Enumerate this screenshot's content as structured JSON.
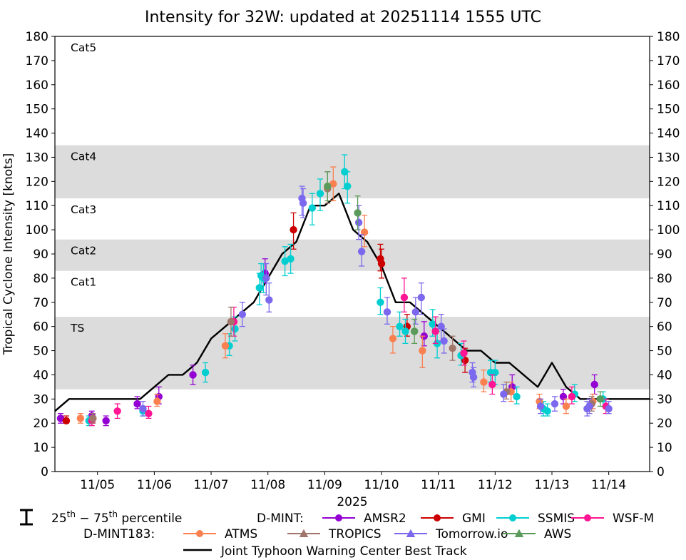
{
  "chart_data": {
    "type": "scatter",
    "title": "Intensity for 32W: updated at 20251114 1555 UTC",
    "xlabel": "2025",
    "ylabel": "Tropical Cyclone Intensity [knots]",
    "xlim": [
      4.25,
      14.72
    ],
    "ylim": [
      0,
      180
    ],
    "yticks": [
      0,
      10,
      20,
      30,
      40,
      50,
      60,
      70,
      80,
      90,
      100,
      110,
      120,
      130,
      140,
      150,
      160,
      170,
      180
    ],
    "xticks": [
      {
        "x": 5.0,
        "label": "11/05"
      },
      {
        "x": 6.0,
        "label": "11/06"
      },
      {
        "x": 7.0,
        "label": "11/07"
      },
      {
        "x": 8.0,
        "label": "11/08"
      },
      {
        "x": 9.0,
        "label": "11/09"
      },
      {
        "x": 10.0,
        "label": "11/10"
      },
      {
        "x": 11.0,
        "label": "11/11"
      },
      {
        "x": 12.0,
        "label": "11/12"
      },
      {
        "x": 13.0,
        "label": "11/13"
      },
      {
        "x": 14.0,
        "label": "11/14"
      }
    ],
    "bands": [
      {
        "label": "TS",
        "ymin": 34,
        "ymax": 64,
        "shaded": true,
        "color": "#dcdcdc"
      },
      {
        "label": "Cat1",
        "ymin": 64,
        "ymax": 83,
        "shaded": false
      },
      {
        "label": "Cat2",
        "ymin": 83,
        "ymax": 96,
        "shaded": true,
        "color": "#dcdcdc"
      },
      {
        "label": "Cat3",
        "ymin": 96,
        "ymax": 113,
        "shaded": false
      },
      {
        "label": "Cat4",
        "ymin": 113,
        "ymax": 135,
        "shaded": true,
        "color": "#dcdcdc"
      },
      {
        "label": "Cat5",
        "ymin": 135,
        "ymax": 180,
        "shaded": false
      }
    ],
    "best_track": {
      "name": "Joint Typhoon Warning Center Best Track",
      "color": "#000000",
      "x": [
        4.25,
        4.5,
        5.0,
        5.5,
        5.75,
        6.0,
        6.25,
        6.5,
        6.75,
        7.0,
        7.25,
        7.5,
        7.75,
        8.0,
        8.25,
        8.5,
        8.75,
        9.0,
        9.25,
        9.5,
        9.75,
        10.0,
        10.25,
        10.5,
        10.75,
        11.0,
        11.25,
        11.5,
        11.75,
        12.0,
        12.25,
        12.5,
        12.75,
        13.0,
        13.25,
        13.5,
        13.75,
        14.0,
        14.25,
        14.5,
        14.72
      ],
      "y": [
        25,
        30,
        30,
        30,
        30,
        35,
        40,
        40,
        45,
        55,
        60,
        65,
        70,
        80,
        90,
        95,
        110,
        110,
        115,
        100,
        95,
        85,
        70,
        70,
        65,
        60,
        55,
        50,
        50,
        45,
        45,
        40,
        35,
        45,
        35,
        30,
        30,
        30,
        30,
        30,
        30
      ]
    },
    "series": [
      {
        "name": "AMSR2",
        "group": "D-MINT",
        "color": "#9400d3",
        "marker": "circle",
        "points": [
          {
            "x": 4.35,
            "y": 22,
            "lo": 20,
            "hi": 24
          },
          {
            "x": 4.9,
            "y": 23,
            "lo": 21,
            "hi": 25
          },
          {
            "x": 5.15,
            "y": 21,
            "lo": 19,
            "hi": 23
          },
          {
            "x": 5.7,
            "y": 28,
            "lo": 26,
            "hi": 31
          },
          {
            "x": 6.08,
            "y": 31,
            "lo": 28,
            "hi": 35
          },
          {
            "x": 6.68,
            "y": 40,
            "lo": 36,
            "hi": 44
          },
          {
            "x": 7.95,
            "y": 82,
            "lo": 78,
            "hi": 88
          },
          {
            "x": 10.75,
            "y": 56,
            "lo": 52,
            "hi": 62
          },
          {
            "x": 12.3,
            "y": 35,
            "lo": 32,
            "hi": 40
          },
          {
            "x": 13.2,
            "y": 31,
            "lo": 28,
            "hi": 34
          },
          {
            "x": 13.75,
            "y": 36,
            "lo": 32,
            "hi": 40
          }
        ]
      },
      {
        "name": "GMI",
        "group": "D-MINT",
        "color": "#cc0000",
        "marker": "circle",
        "points": [
          {
            "x": 4.45,
            "y": 21,
            "lo": 20,
            "hi": 23
          },
          {
            "x": 8.45,
            "y": 100,
            "lo": 92,
            "hi": 107
          },
          {
            "x": 9.98,
            "y": 88,
            "lo": 83,
            "hi": 94
          },
          {
            "x": 10.0,
            "y": 86,
            "lo": 80,
            "hi": 92
          },
          {
            "x": 10.45,
            "y": 60,
            "lo": 56,
            "hi": 65
          },
          {
            "x": 11.47,
            "y": 46,
            "lo": 41,
            "hi": 51
          }
        ]
      },
      {
        "name": "SSMIS",
        "group": "D-MINT",
        "color": "#00ced1",
        "marker": "circle",
        "points": [
          {
            "x": 4.85,
            "y": 21,
            "lo": 19,
            "hi": 23
          },
          {
            "x": 5.8,
            "y": 25,
            "lo": 23,
            "hi": 27
          },
          {
            "x": 6.9,
            "y": 41,
            "lo": 37,
            "hi": 45
          },
          {
            "x": 7.32,
            "y": 52,
            "lo": 48,
            "hi": 57
          },
          {
            "x": 7.42,
            "y": 59,
            "lo": 54,
            "hi": 64
          },
          {
            "x": 7.85,
            "y": 76,
            "lo": 69,
            "hi": 82
          },
          {
            "x": 7.88,
            "y": 81,
            "lo": 75,
            "hi": 86
          },
          {
            "x": 7.92,
            "y": 80,
            "lo": 74,
            "hi": 86
          },
          {
            "x": 8.3,
            "y": 87,
            "lo": 81,
            "hi": 93
          },
          {
            "x": 8.4,
            "y": 88,
            "lo": 82,
            "hi": 94
          },
          {
            "x": 8.78,
            "y": 109,
            "lo": 102,
            "hi": 115
          },
          {
            "x": 8.92,
            "y": 115,
            "lo": 108,
            "hi": 121
          },
          {
            "x": 9.35,
            "y": 124,
            "lo": 117,
            "hi": 131
          },
          {
            "x": 9.4,
            "y": 118,
            "lo": 111,
            "hi": 124
          },
          {
            "x": 9.98,
            "y": 70,
            "lo": 65,
            "hi": 76
          },
          {
            "x": 10.32,
            "y": 60,
            "lo": 56,
            "hi": 66
          },
          {
            "x": 10.42,
            "y": 58,
            "lo": 53,
            "hi": 63
          },
          {
            "x": 10.9,
            "y": 61,
            "lo": 56,
            "hi": 67
          },
          {
            "x": 10.98,
            "y": 53,
            "lo": 47,
            "hi": 58
          },
          {
            "x": 11.4,
            "y": 48,
            "lo": 44,
            "hi": 53
          },
          {
            "x": 11.92,
            "y": 41,
            "lo": 37,
            "hi": 46
          },
          {
            "x": 12.0,
            "y": 41,
            "lo": 36,
            "hi": 46
          },
          {
            "x": 12.38,
            "y": 31,
            "lo": 28,
            "hi": 35
          },
          {
            "x": 12.85,
            "y": 26,
            "lo": 23,
            "hi": 29
          },
          {
            "x": 12.92,
            "y": 25,
            "lo": 23,
            "hi": 28
          },
          {
            "x": 13.4,
            "y": 32,
            "lo": 29,
            "hi": 36
          },
          {
            "x": 13.9,
            "y": 30,
            "lo": 27,
            "hi": 33
          }
        ]
      },
      {
        "name": "WSF-M",
        "group": "D-MINT",
        "color": "#ff1493",
        "marker": "circle",
        "points": [
          {
            "x": 4.9,
            "y": 21,
            "lo": 19,
            "hi": 23
          },
          {
            "x": 5.35,
            "y": 25,
            "lo": 22,
            "hi": 28
          },
          {
            "x": 5.9,
            "y": 24,
            "lo": 22,
            "hi": 27
          },
          {
            "x": 7.4,
            "y": 62,
            "lo": 56,
            "hi": 68
          },
          {
            "x": 10.4,
            "y": 72,
            "lo": 66,
            "hi": 80
          },
          {
            "x": 10.95,
            "y": 58,
            "lo": 53,
            "hi": 64
          },
          {
            "x": 11.45,
            "y": 49,
            "lo": 44,
            "hi": 54
          },
          {
            "x": 11.95,
            "y": 36,
            "lo": 32,
            "hi": 40
          },
          {
            "x": 13.35,
            "y": 31,
            "lo": 28,
            "hi": 35
          },
          {
            "x": 13.95,
            "y": 27,
            "lo": 24,
            "hi": 30
          }
        ]
      },
      {
        "name": "ATMS",
        "group": "D-MINT183",
        "color": "#fa8050",
        "marker": "circle",
        "points": [
          {
            "x": 4.7,
            "y": 22,
            "lo": 20,
            "hi": 24
          },
          {
            "x": 6.05,
            "y": 29,
            "lo": 27,
            "hi": 32
          },
          {
            "x": 7.25,
            "y": 52,
            "lo": 47,
            "hi": 57
          },
          {
            "x": 9.15,
            "y": 119,
            "lo": 112,
            "hi": 126
          },
          {
            "x": 9.7,
            "y": 99,
            "lo": 93,
            "hi": 106
          },
          {
            "x": 10.2,
            "y": 55,
            "lo": 49,
            "hi": 60
          },
          {
            "x": 10.72,
            "y": 50,
            "lo": 43,
            "hi": 56
          },
          {
            "x": 11.8,
            "y": 37,
            "lo": 33,
            "hi": 42
          },
          {
            "x": 12.28,
            "y": 33,
            "lo": 29,
            "hi": 37
          },
          {
            "x": 12.78,
            "y": 29,
            "lo": 26,
            "hi": 32
          },
          {
            "x": 13.25,
            "y": 27,
            "lo": 24,
            "hi": 30
          },
          {
            "x": 13.72,
            "y": 29,
            "lo": 26,
            "hi": 32
          }
        ]
      },
      {
        "name": "TROPICS",
        "group": "D-MINT183",
        "color": "#a0766a",
        "marker": "triangle",
        "points": [
          {
            "x": 4.92,
            "y": 22,
            "lo": 20,
            "hi": 24
          },
          {
            "x": 7.35,
            "y": 62,
            "lo": 56,
            "hi": 68
          },
          {
            "x": 9.05,
            "y": 117,
            "lo": 111,
            "hi": 124
          },
          {
            "x": 11.25,
            "y": 51,
            "lo": 46,
            "hi": 56
          },
          {
            "x": 12.2,
            "y": 33,
            "lo": 30,
            "hi": 37
          },
          {
            "x": 13.7,
            "y": 28,
            "lo": 25,
            "hi": 31
          }
        ]
      },
      {
        "name": "Tomorrow.io",
        "group": "D-MINT183",
        "color": "#7b68ee",
        "marker": "triangle",
        "points": [
          {
            "x": 5.8,
            "y": 26,
            "lo": 23,
            "hi": 29
          },
          {
            "x": 7.55,
            "y": 65,
            "lo": 60,
            "hi": 70
          },
          {
            "x": 7.97,
            "y": 80,
            "lo": 73,
            "hi": 86
          },
          {
            "x": 8.02,
            "y": 71,
            "lo": 66,
            "hi": 78
          },
          {
            "x": 8.6,
            "y": 113,
            "lo": 106,
            "hi": 118
          },
          {
            "x": 8.62,
            "y": 111,
            "lo": 105,
            "hi": 117
          },
          {
            "x": 9.6,
            "y": 103,
            "lo": 96,
            "hi": 110
          },
          {
            "x": 9.65,
            "y": 91,
            "lo": 85,
            "hi": 98
          },
          {
            "x": 10.1,
            "y": 66,
            "lo": 61,
            "hi": 72
          },
          {
            "x": 10.6,
            "y": 66,
            "lo": 61,
            "hi": 72
          },
          {
            "x": 10.7,
            "y": 72,
            "lo": 65,
            "hi": 78
          },
          {
            "x": 11.05,
            "y": 60,
            "lo": 54,
            "hi": 65
          },
          {
            "x": 11.1,
            "y": 54,
            "lo": 49,
            "hi": 59
          },
          {
            "x": 11.6,
            "y": 41,
            "lo": 37,
            "hi": 45
          },
          {
            "x": 11.62,
            "y": 39,
            "lo": 35,
            "hi": 43
          },
          {
            "x": 12.15,
            "y": 32,
            "lo": 29,
            "hi": 36
          },
          {
            "x": 12.8,
            "y": 27,
            "lo": 24,
            "hi": 30
          },
          {
            "x": 13.05,
            "y": 28,
            "lo": 25,
            "hi": 31
          },
          {
            "x": 13.62,
            "y": 26,
            "lo": 23,
            "hi": 29
          },
          {
            "x": 13.66,
            "y": 27,
            "lo": 24,
            "hi": 30
          },
          {
            "x": 14.0,
            "y": 26,
            "lo": 24,
            "hi": 29
          }
        ]
      },
      {
        "name": "AWS",
        "group": "D-MINT183",
        "color": "#5a9a5a",
        "marker": "triangle",
        "points": [
          {
            "x": 9.05,
            "y": 118,
            "lo": 112,
            "hi": 124
          },
          {
            "x": 9.58,
            "y": 107,
            "lo": 100,
            "hi": 114
          },
          {
            "x": 10.58,
            "y": 58,
            "lo": 53,
            "hi": 63
          },
          {
            "x": 13.85,
            "y": 30,
            "lo": 27,
            "hi": 33
          }
        ]
      }
    ],
    "legend": {
      "percentile_label_parts": [
        "25",
        "th",
        " − 75",
        "th",
        " percentile"
      ],
      "dmint_label": "D-MINT:",
      "dmint183_label": "D-MINT183:"
    }
  }
}
